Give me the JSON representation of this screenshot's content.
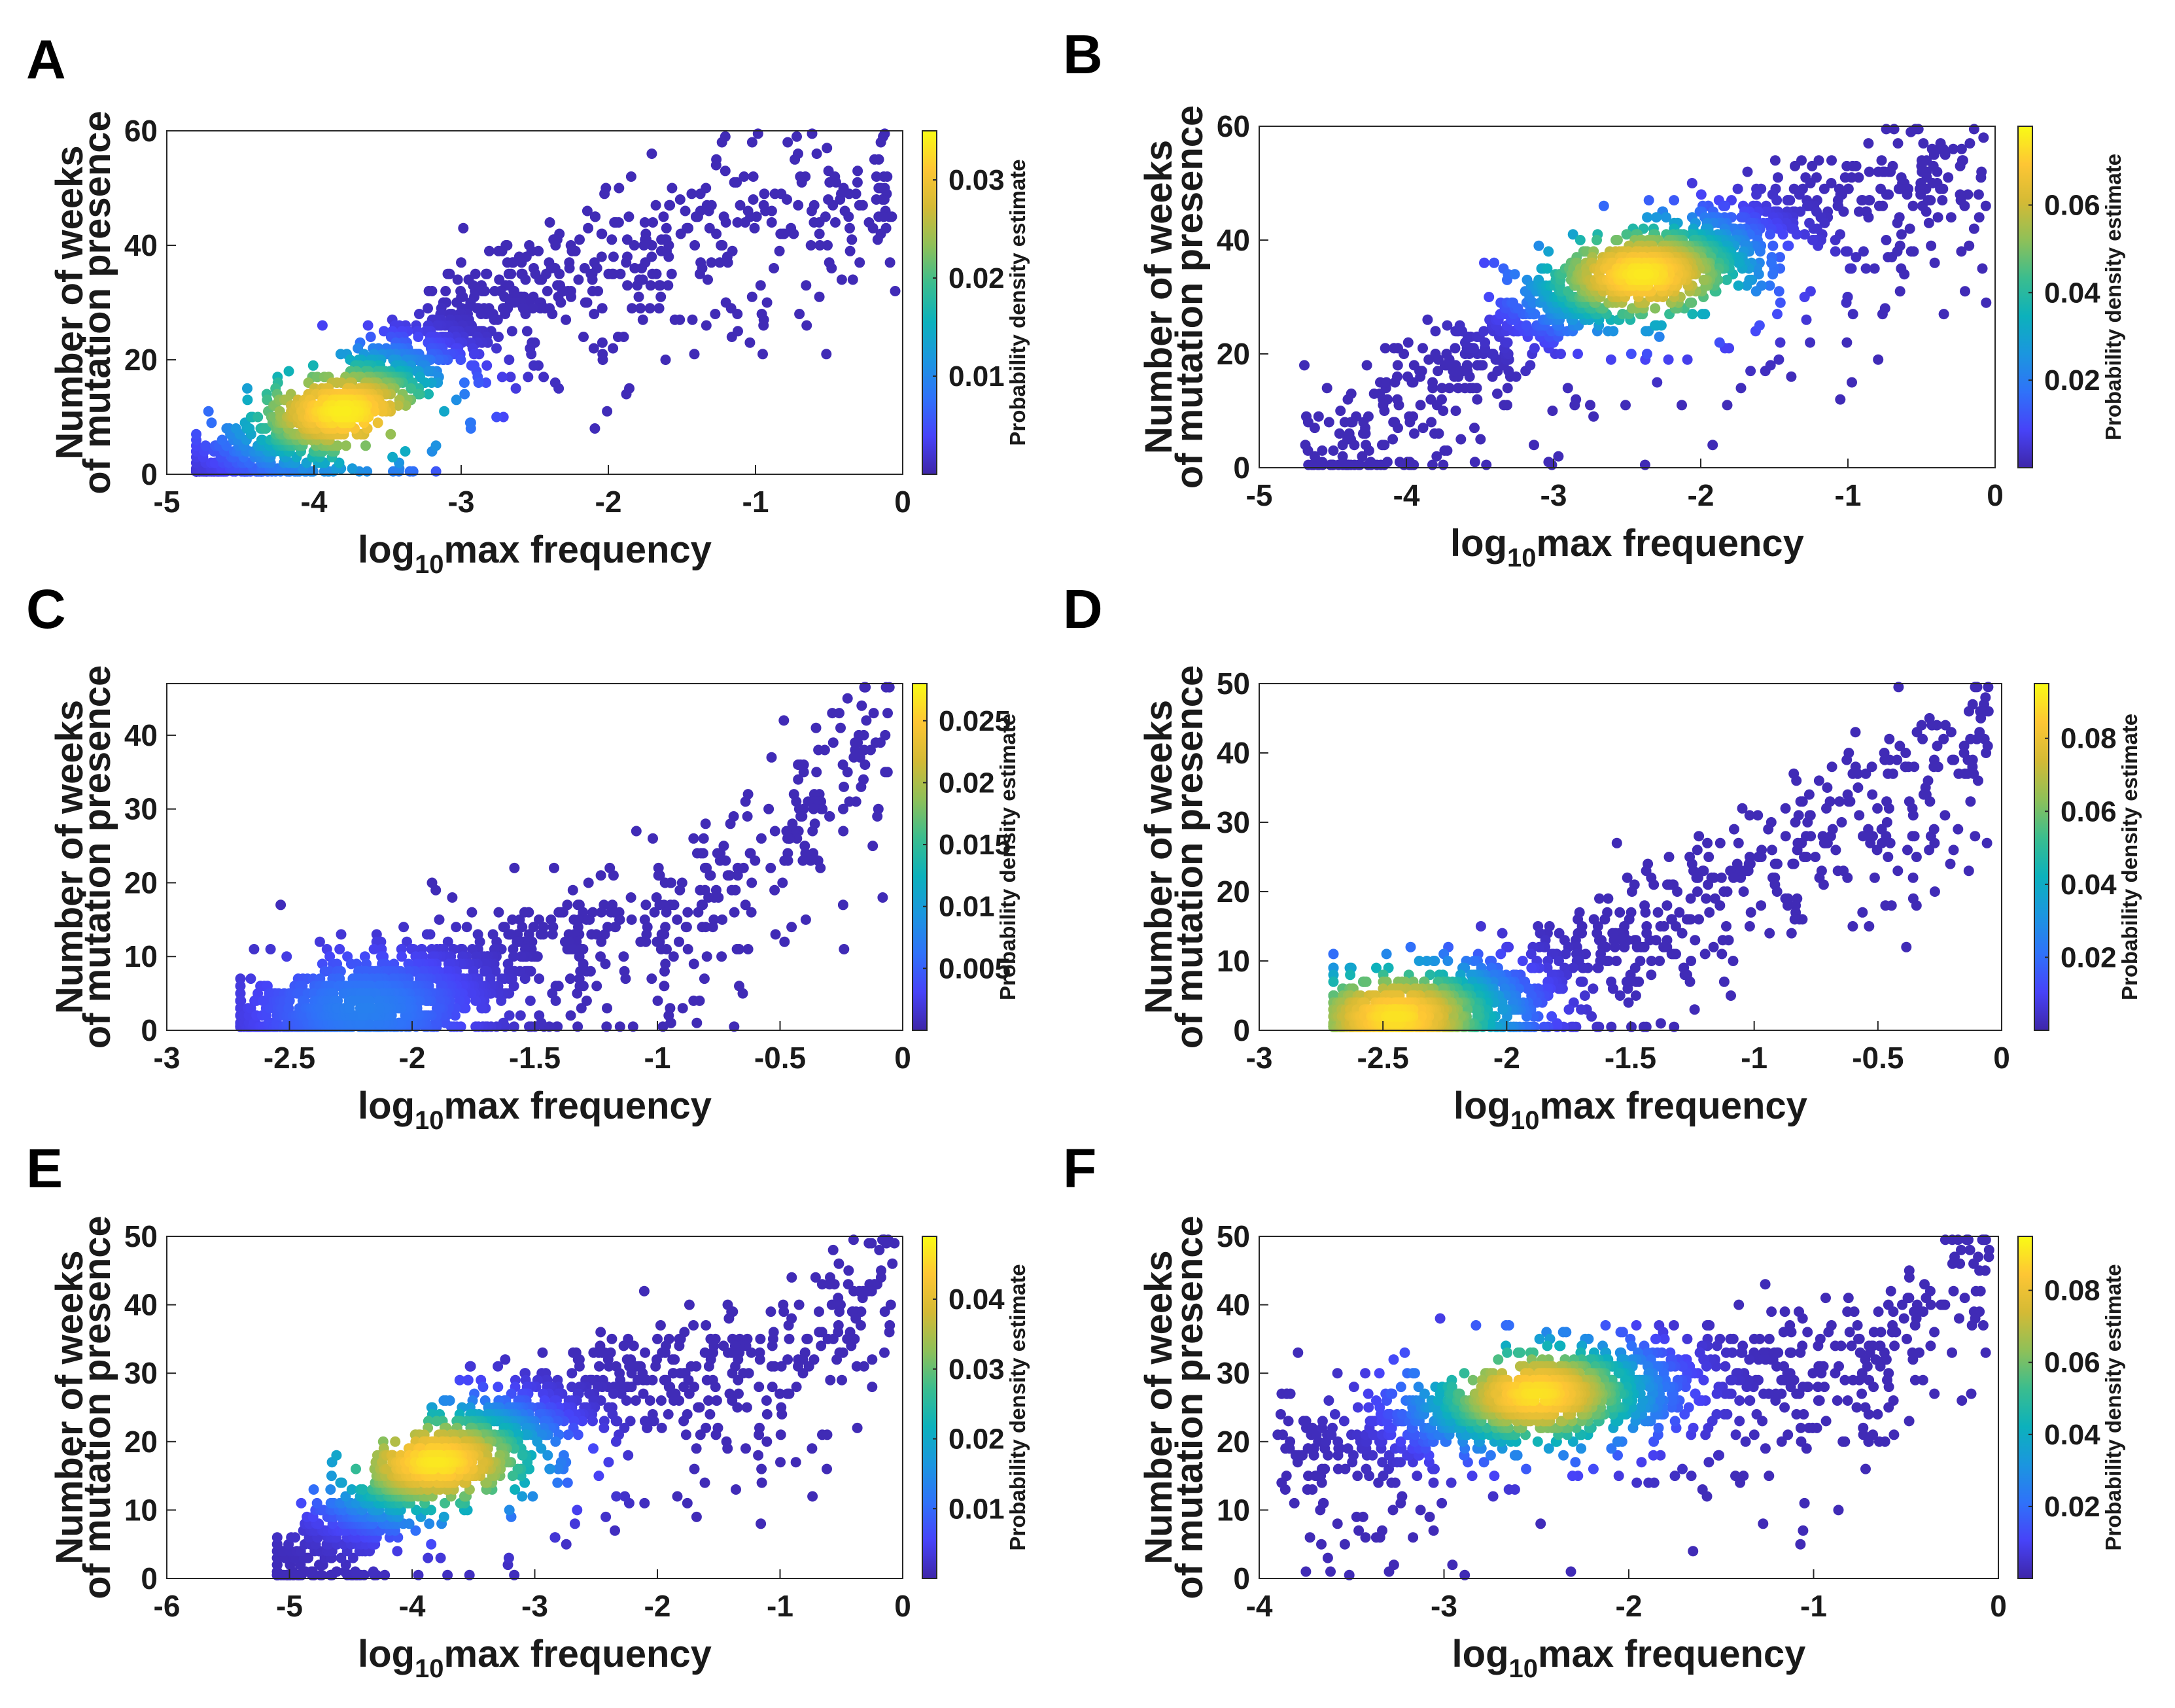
{
  "colormap": [
    "#3e26a8",
    "#4743f8",
    "#2f72f9",
    "#1b96df",
    "#0cb1bc",
    "#3bbd8e",
    "#8fc058",
    "#d4ba35",
    "#fec634",
    "#f9fb15"
  ],
  "chart_data": [
    {
      "panel": "A",
      "type": "scatter",
      "xlabel_prefix": "log",
      "xlabel_sub": "10",
      "xlabel_suffix": "max frequency",
      "ylabel_line1": "Number of weeks",
      "ylabel_line2": "of mutation presence",
      "colorbar_label": "Probability density estimate",
      "xlim": [
        -5,
        0
      ],
      "ylim": [
        0,
        60
      ],
      "xticks": [
        -5,
        -4,
        -3,
        -2,
        -1,
        0
      ],
      "yticks": [
        0,
        20,
        40,
        60
      ],
      "clim": [
        0,
        0.035
      ],
      "cbticks": [
        0.01,
        0.02,
        0.03
      ],
      "cbtick_labels": [
        "0.01",
        "0.02",
        "0.03"
      ],
      "trend": [
        [
          -4.8,
          1
        ],
        [
          -4.3,
          5
        ],
        [
          -3.8,
          12
        ],
        [
          -3.3,
          21
        ],
        [
          -2.8,
          30
        ],
        [
          -2.3,
          36
        ],
        [
          -1.8,
          40
        ],
        [
          -1.3,
          44
        ],
        [
          -0.8,
          47
        ],
        [
          -0.3,
          49
        ],
        [
          -0.05,
          51
        ]
      ],
      "hotspot": [
        -3.8,
        11
      ],
      "hotspot_value": 0.034
    },
    {
      "panel": "B",
      "type": "scatter",
      "xlabel_prefix": "log",
      "xlabel_sub": "10",
      "xlabel_suffix": "max frequency",
      "ylabel_line1": "Number of weeks",
      "ylabel_line2": "of mutation presence",
      "colorbar_label": "Probability density estimate",
      "xlim": [
        -5,
        0
      ],
      "ylim": [
        0,
        60
      ],
      "xticks": [
        -5,
        -4,
        -3,
        -2,
        -1,
        0
      ],
      "yticks": [
        0,
        20,
        40,
        60
      ],
      "clim": [
        0,
        0.078
      ],
      "cbticks": [
        0.02,
        0.04,
        0.06
      ],
      "cbtick_labels": [
        "0.02",
        "0.04",
        "0.06"
      ],
      "trend": [
        [
          -4.7,
          2
        ],
        [
          -4.2,
          10
        ],
        [
          -3.7,
          18
        ],
        [
          -3.2,
          26
        ],
        [
          -2.7,
          32
        ],
        [
          -2.2,
          36
        ],
        [
          -1.7,
          40
        ],
        [
          -1.2,
          46
        ],
        [
          -0.7,
          48
        ],
        [
          -0.3,
          50
        ],
        [
          -0.05,
          51
        ]
      ],
      "hotspot": [
        -2.4,
        34
      ],
      "hotspot_value": 0.075
    },
    {
      "panel": "C",
      "type": "scatter",
      "xlabel_prefix": "log",
      "xlabel_sub": "10",
      "xlabel_suffix": "max frequency",
      "ylabel_line1": "Number of weeks",
      "ylabel_line2": "of mutation presence",
      "colorbar_label": "Probability density estimate",
      "xlim": [
        -3,
        0
      ],
      "ylim": [
        0,
        47
      ],
      "xticks": [
        -3,
        -2.5,
        -2,
        -1.5,
        -1,
        -0.5,
        0
      ],
      "xtick_labels": [
        "-3",
        "-2.5",
        "-2",
        "-1.5",
        "-1",
        "-0.5",
        "0"
      ],
      "yticks": [
        0,
        10,
        20,
        30,
        40
      ],
      "clim": [
        0,
        0.028
      ],
      "cbticks": [
        0.005,
        0.01,
        0.015,
        0.02,
        0.025
      ],
      "cbtick_labels": [
        "0.005",
        "0.01",
        "0.015",
        "0.02",
        "0.025"
      ],
      "trend": [
        [
          -2.7,
          1
        ],
        [
          -2.3,
          3
        ],
        [
          -2.0,
          5
        ],
        [
          -1.7,
          8
        ],
        [
          -1.4,
          12
        ],
        [
          -1.0,
          16
        ],
        [
          -0.7,
          22
        ],
        [
          -0.4,
          30
        ],
        [
          -0.2,
          38
        ],
        [
          -0.05,
          46
        ]
      ],
      "hotspot": [
        -2.2,
        3
      ],
      "hotspot_value": 0.007
    },
    {
      "panel": "D",
      "type": "scatter",
      "xlabel_prefix": "log",
      "xlabel_sub": "10",
      "xlabel_suffix": "max frequency",
      "ylabel_line1": "Number of weeks",
      "ylabel_line2": "of mutation presence",
      "colorbar_label": "Probability density estimate",
      "xlim": [
        -3,
        0
      ],
      "ylim": [
        0,
        50
      ],
      "xticks": [
        -3,
        -2.5,
        -2,
        -1.5,
        -1,
        -0.5,
        0
      ],
      "xtick_labels": [
        "-3",
        "-2.5",
        "-2",
        "-1.5",
        "-1",
        "-0.5",
        "0"
      ],
      "yticks": [
        0,
        10,
        20,
        30,
        40,
        50
      ],
      "clim": [
        0,
        0.095
      ],
      "cbticks": [
        0.02,
        0.04,
        0.06,
        0.08
      ],
      "cbtick_labels": [
        "0.02",
        "0.04",
        "0.06",
        "0.08"
      ],
      "trend": [
        [
          -2.7,
          1
        ],
        [
          -2.4,
          2
        ],
        [
          -2.0,
          5
        ],
        [
          -1.7,
          10
        ],
        [
          -1.4,
          17
        ],
        [
          -1.1,
          23
        ],
        [
          -0.8,
          28
        ],
        [
          -0.5,
          34
        ],
        [
          -0.2,
          40
        ],
        [
          -0.05,
          46
        ]
      ],
      "hotspot": [
        -2.45,
        2
      ],
      "hotspot_value": 0.09
    },
    {
      "panel": "E",
      "type": "scatter",
      "xlabel_prefix": "log",
      "xlabel_sub": "10",
      "xlabel_suffix": "max frequency",
      "ylabel_line1": "Number of weeks",
      "ylabel_line2": "of mutation presence",
      "colorbar_label": "Probability density estimate",
      "xlim": [
        -6,
        0
      ],
      "ylim": [
        0,
        50
      ],
      "xticks": [
        -6,
        -5,
        -4,
        -3,
        -2,
        -1,
        0
      ],
      "yticks": [
        0,
        10,
        20,
        30,
        40,
        50
      ],
      "clim": [
        0,
        0.049
      ],
      "cbticks": [
        0.01,
        0.02,
        0.03,
        0.04
      ],
      "cbtick_labels": [
        "0.01",
        "0.02",
        "0.03",
        "0.04"
      ],
      "trend": [
        [
          -5.1,
          1
        ],
        [
          -4.6,
          7
        ],
        [
          -4.1,
          14
        ],
        [
          -3.6,
          19
        ],
        [
          -3.0,
          24
        ],
        [
          -2.5,
          27
        ],
        [
          -2.0,
          29
        ],
        [
          -1.5,
          31
        ],
        [
          -1.0,
          34
        ],
        [
          -0.5,
          38
        ],
        [
          -0.05,
          46
        ]
      ],
      "hotspot": [
        -3.8,
        17
      ],
      "hotspot_value": 0.047
    },
    {
      "panel": "F",
      "type": "scatter",
      "xlabel_prefix": "log",
      "xlabel_sub": "10",
      "xlabel_suffix": "max frequency",
      "ylabel_line1": "Number of weeks",
      "ylabel_line2": "of mutation presence",
      "colorbar_label": "Probability density estimate",
      "xlim": [
        -4,
        0
      ],
      "ylim": [
        0,
        50
      ],
      "xticks": [
        -4,
        -3,
        -2,
        -1,
        0
      ],
      "yticks": [
        0,
        10,
        20,
        30,
        40,
        50
      ],
      "clim": [
        0,
        0.095
      ],
      "cbticks": [
        0.02,
        0.04,
        0.06,
        0.08
      ],
      "cbtick_labels": [
        "0.02",
        "0.04",
        "0.06",
        "0.08"
      ],
      "trend": [
        [
          -3.9,
          18
        ],
        [
          -3.5,
          20
        ],
        [
          -3.0,
          23
        ],
        [
          -2.5,
          27
        ],
        [
          -2.0,
          28
        ],
        [
          -1.5,
          29
        ],
        [
          -1.0,
          31
        ],
        [
          -0.6,
          35
        ],
        [
          -0.3,
          40
        ],
        [
          -0.05,
          47
        ]
      ],
      "hotspot": [
        -2.5,
        27
      ],
      "hotspot_value": 0.09
    }
  ]
}
